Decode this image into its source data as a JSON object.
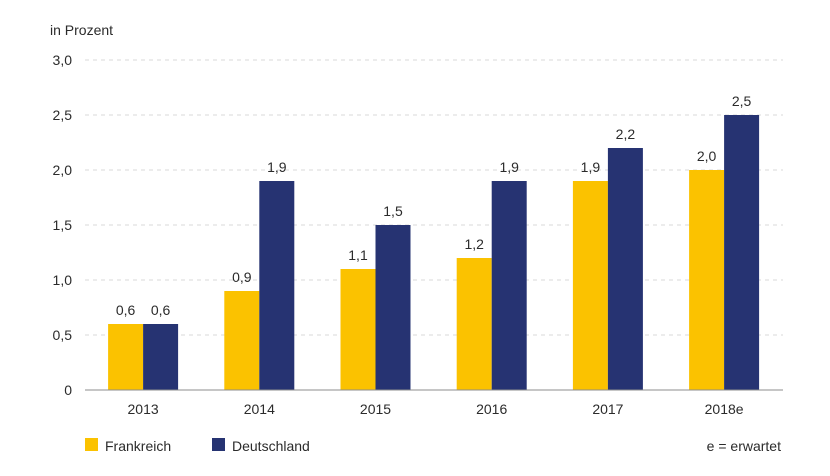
{
  "chart_data": {
    "type": "bar",
    "ylabel": "in Prozent",
    "categories": [
      "2013",
      "2014",
      "2015",
      "2016",
      "2017",
      "2018e"
    ],
    "series": [
      {
        "name": "Frankreich",
        "color": "#FBC200",
        "values": [
          0.6,
          0.9,
          1.1,
          1.2,
          1.9,
          2.0
        ],
        "labels": [
          "0,6",
          "0,9",
          "1,1",
          "1,2",
          "1,9",
          "2,0"
        ]
      },
      {
        "name": "Deutschland",
        "color": "#263372",
        "values": [
          0.6,
          1.9,
          1.5,
          1.9,
          2.2,
          2.5
        ],
        "labels": [
          "0,6",
          "1,9",
          "1,5",
          "1,9",
          "2,2",
          "2,5"
        ]
      }
    ],
    "ylim": [
      0,
      3.0
    ],
    "yticks": [
      0,
      0.5,
      1.0,
      1.5,
      2.0,
      2.5,
      3.0
    ],
    "ytick_labels": [
      "0",
      "0,5",
      "1,0",
      "1,5",
      "2,0",
      "2,5",
      "3,0"
    ],
    "grid": "horizontal dashed",
    "legend_position": "bottom-left",
    "note": "e = erwartet"
  }
}
